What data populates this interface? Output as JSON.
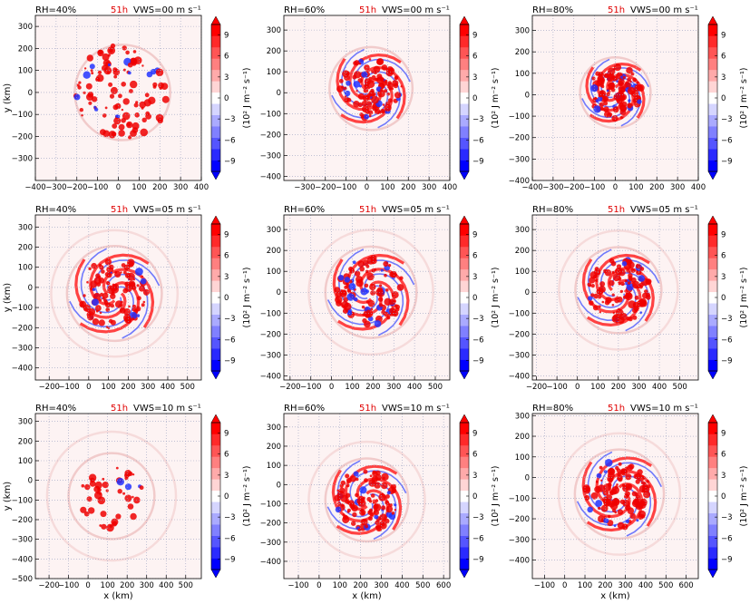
{
  "figure": {
    "title_time": "51h",
    "title_time_color": "#e00000",
    "colorbar_label": "(10² J m⁻² s⁻¹)",
    "colorbar_ticks": [
      "9",
      "6",
      "3",
      "0",
      "−3",
      "−6",
      "−9"
    ],
    "colorbar_colors": [
      "#0000ff",
      "#2a2aff",
      "#5555ff",
      "#8080ff",
      "#aaaaff",
      "#d5d5ff",
      "#ffffff",
      "#ffd5d5",
      "#ffaaaa",
      "#ff8080",
      "#ff5555",
      "#ff2a2a",
      "#ff0000"
    ],
    "xlabel": "x (km)",
    "ylabel": "y (km)"
  },
  "chart_data": [
    {
      "type": "heatmap",
      "rh_label": "RH=40%",
      "time_label": "51h",
      "vws_label": "VWS=00 m s⁻¹",
      "xlim": [
        -400,
        400
      ],
      "ylim": [
        -400,
        350
      ],
      "xticks": [
        "−400",
        "−300",
        "−200",
        "−100",
        "0",
        "100",
        "200",
        "300",
        "400"
      ],
      "xtick_vals": [
        -400,
        -300,
        -200,
        -100,
        0,
        100,
        200,
        300,
        400
      ],
      "yticks": [
        "300",
        "200",
        "100",
        "0",
        "−100",
        "−200",
        "−300"
      ],
      "ytick_vals": [
        300,
        200,
        100,
        0,
        -100,
        -200,
        -300
      ],
      "center": [
        20,
        0
      ],
      "rings": [
        230
      ],
      "pattern": "cells"
    },
    {
      "type": "heatmap",
      "rh_label": "RH=60%",
      "time_label": "51h",
      "vws_label": "VWS=00 m s⁻¹",
      "xlim": [
        -400,
        400
      ],
      "ylim": [
        -420,
        370
      ],
      "xticks": [
        "−300",
        "−200",
        "−100",
        "0",
        "100",
        "200",
        "300",
        "400"
      ],
      "xtick_vals": [
        -300,
        -200,
        -100,
        0,
        100,
        200,
        300,
        400
      ],
      "yticks": [
        "300",
        "200",
        "100",
        "0",
        "−100",
        "−200",
        "−300",
        "−400"
      ],
      "ytick_vals": [
        300,
        200,
        100,
        0,
        -100,
        -200,
        -300,
        -400
      ],
      "center": [
        20,
        20
      ],
      "rings": [
        200
      ],
      "pattern": "spiral"
    },
    {
      "type": "heatmap",
      "rh_label": "RH=80%",
      "time_label": "51h",
      "vws_label": "VWS=00 m s⁻¹",
      "xlim": [
        -400,
        400
      ],
      "ylim": [
        -400,
        370
      ],
      "xticks": [
        "−400",
        "−300",
        "−200",
        "−100",
        "0",
        "100",
        "200",
        "300",
        "400"
      ],
      "xtick_vals": [
        -400,
        -300,
        -200,
        -100,
        0,
        100,
        200,
        300,
        400
      ],
      "yticks": [
        "300",
        "200",
        "100",
        "0",
        "−100",
        "−200",
        "−300",
        "−400"
      ],
      "ytick_vals": [
        300,
        200,
        100,
        0,
        -100,
        -200,
        -300,
        -400
      ],
      "center": [
        0,
        10
      ],
      "rings": [
        170
      ],
      "pattern": "spiral"
    },
    {
      "type": "heatmap",
      "rh_label": "RH=40%",
      "time_label": "51h",
      "vws_label": "VWS=05 m s⁻¹",
      "xlim": [
        -270,
        570
      ],
      "ylim": [
        -460,
        360
      ],
      "xticks": [
        "−200",
        "−100",
        "0",
        "100",
        "200",
        "300",
        "400",
        "500"
      ],
      "xtick_vals": [
        -200,
        -100,
        0,
        100,
        200,
        300,
        400,
        500
      ],
      "yticks": [
        "300",
        "200",
        "100",
        "0",
        "−100",
        "−200",
        "−300",
        "−400"
      ],
      "ytick_vals": [
        300,
        200,
        100,
        0,
        -100,
        -200,
        -300,
        -400
      ],
      "center": [
        130,
        -30
      ],
      "rings": [
        240,
        320
      ],
      "pattern": "spiral"
    },
    {
      "type": "heatmap",
      "rh_label": "RH=60%",
      "time_label": "51h",
      "vws_label": "VWS=05 m s⁻¹",
      "xlim": [
        -230,
        570
      ],
      "ylim": [
        -420,
        370
      ],
      "xticks": [
        "−200",
        "−100",
        "0",
        "100",
        "200",
        "300",
        "400",
        "500"
      ],
      "xtick_vals": [
        -200,
        -100,
        0,
        100,
        200,
        300,
        400,
        500
      ],
      "yticks": [
        "300",
        "200",
        "100",
        "0",
        "−100",
        "−200",
        "−300",
        "−400"
      ],
      "ytick_vals": [
        300,
        200,
        100,
        0,
        -100,
        -200,
        -300,
        -400
      ],
      "center": [
        190,
        0
      ],
      "rings": [
        220,
        300
      ],
      "pattern": "spiral"
    },
    {
      "type": "heatmap",
      "rh_label": "RH=80%",
      "time_label": "51h",
      "vws_label": "VWS=05 m s⁻¹",
      "xlim": [
        -220,
        590
      ],
      "ylim": [
        -420,
        370
      ],
      "xticks": [
        "−200",
        "−100",
        "0",
        "100",
        "200",
        "300",
        "400",
        "500"
      ],
      "xtick_vals": [
        -200,
        -100,
        0,
        100,
        200,
        300,
        400,
        500
      ],
      "yticks": [
        "300",
        "200",
        "100",
        "0",
        "−100",
        "−200",
        "−300",
        "−400"
      ],
      "ytick_vals": [
        300,
        200,
        100,
        0,
        -100,
        -200,
        -300,
        -400
      ],
      "center": [
        200,
        10
      ],
      "rings": [
        210,
        290
      ],
      "pattern": "spiral"
    },
    {
      "type": "heatmap",
      "rh_label": "RH=40%",
      "time_label": "51h",
      "vws_label": "VWS=10 m s⁻¹",
      "xlim": [
        -270,
        580
      ],
      "ylim": [
        -500,
        340
      ],
      "xticks": [
        "−200",
        "−100",
        "0",
        "100",
        "200",
        "300",
        "400",
        "500"
      ],
      "xtick_vals": [
        -200,
        -100,
        0,
        100,
        200,
        300,
        400,
        500
      ],
      "yticks": [
        "300",
        "200",
        "100",
        "0",
        "−100",
        "−200",
        "−300",
        "−400",
        "−500"
      ],
      "ytick_vals": [
        300,
        200,
        100,
        0,
        -100,
        -200,
        -300,
        -400,
        -500
      ],
      "center": [
        120,
        -80
      ],
      "rings": [
        220,
        330
      ],
      "pattern": "sparse"
    },
    {
      "type": "heatmap",
      "rh_label": "RH=60%",
      "time_label": "51h",
      "vws_label": "VWS=10 m s⁻¹",
      "xlim": [
        -170,
        630
      ],
      "ylim": [
        -490,
        370
      ],
      "xticks": [
        "−100",
        "0",
        "100",
        "200",
        "300",
        "400",
        "500",
        "600"
      ],
      "xtick_vals": [
        -100,
        0,
        100,
        200,
        300,
        400,
        500,
        600
      ],
      "yticks": [
        "300",
        "200",
        "100",
        "0",
        "−100",
        "−200",
        "−300",
        "−400"
      ],
      "ytick_vals": [
        300,
        200,
        100,
        0,
        -100,
        -200,
        -300,
        -400
      ],
      "center": [
        230,
        -80
      ],
      "rings": [
        200,
        280
      ],
      "pattern": "spiral"
    },
    {
      "type": "heatmap",
      "rh_label": "RH=80%",
      "time_label": "51h",
      "vws_label": "VWS=10 m s⁻¹",
      "xlim": [
        -160,
        660
      ],
      "ylim": [
        -490,
        310
      ],
      "xticks": [
        "−100",
        "0",
        "100",
        "200",
        "300",
        "400",
        "500",
        "600"
      ],
      "xtick_vals": [
        -100,
        0,
        100,
        200,
        300,
        400,
        500,
        600
      ],
      "yticks": [
        "300",
        "200",
        "100",
        "0",
        "−100",
        "−200",
        "−300",
        "−400"
      ],
      "ytick_vals": [
        300,
        200,
        100,
        0,
        -100,
        -200,
        -300,
        -400
      ],
      "center": [
        270,
        -80
      ],
      "rings": [
        220,
        300
      ],
      "pattern": "spiral"
    }
  ]
}
